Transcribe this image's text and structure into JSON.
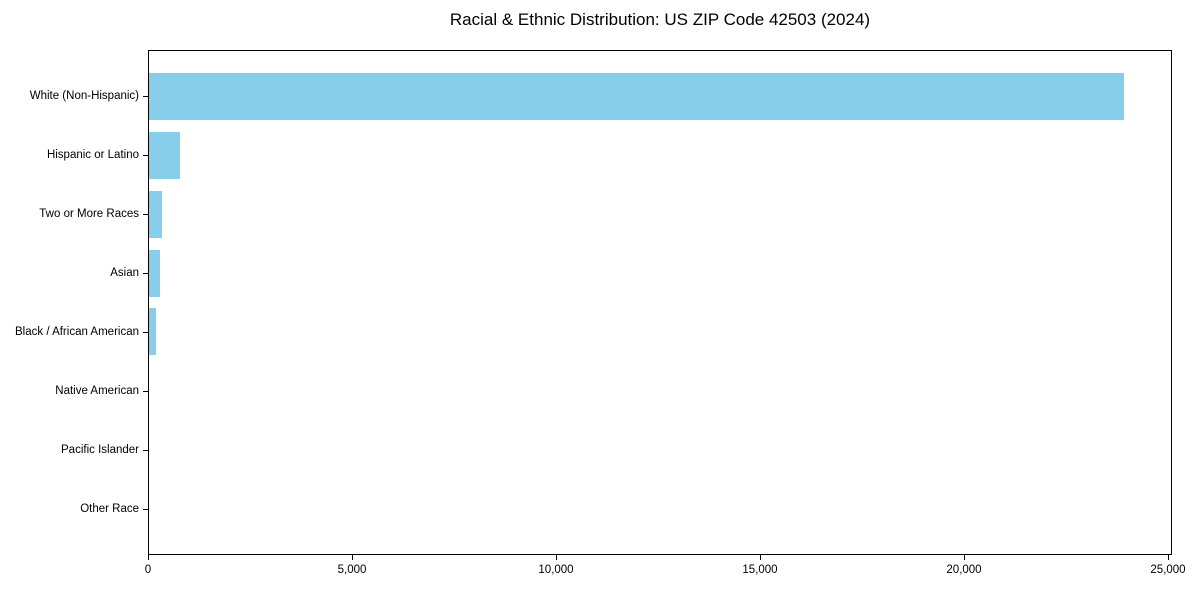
{
  "chart_data": {
    "type": "bar",
    "orientation": "horizontal",
    "title": "Racial & Ethnic Distribution: US ZIP Code 42503 (2024)",
    "categories": [
      "White (Non-Hispanic)",
      "Hispanic or Latino",
      "Two or More Races",
      "Asian",
      "Black / African American",
      "Native American",
      "Pacific Islander",
      "Other Race"
    ],
    "values": [
      23900,
      750,
      320,
      280,
      170,
      0,
      0,
      0
    ],
    "xlabel": "",
    "ylabel": "",
    "xlim": [
      0,
      25100
    ],
    "x_ticks": [
      0,
      5000,
      10000,
      15000,
      20000,
      25000
    ],
    "x_tick_labels": [
      "0",
      "5,000",
      "10,000",
      "15,000",
      "20,000",
      "25,000"
    ],
    "bar_color": "#87CEEB",
    "axis_color": "#000000",
    "text_color": "#000000",
    "background_color": "#FFFFFF",
    "grid": false,
    "legend": "none"
  }
}
